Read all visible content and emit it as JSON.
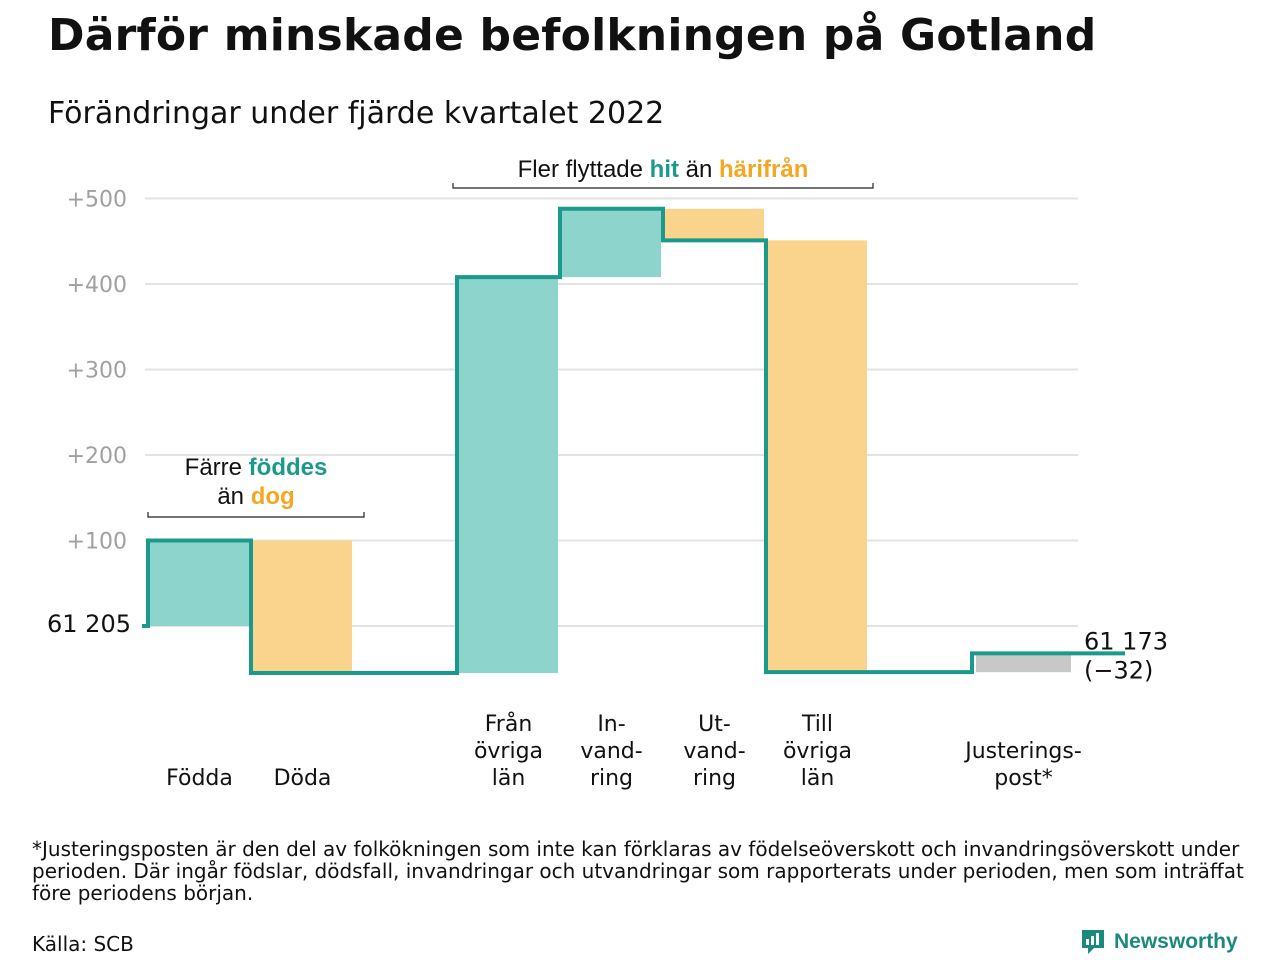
{
  "title": "Därför minskade befolkningen på Gotland",
  "subtitle": "Förändringar under fjärde kvartalet 2022",
  "chart_data": {
    "type": "waterfall",
    "start_label": "61 205",
    "start_value": 61205,
    "end_label_value": "61 173",
    "end_label_change": "(−32)",
    "end_value": 61173,
    "ylim": [
      -55,
      525
    ],
    "y_ticks": [
      {
        "value": 100,
        "label": "+100"
      },
      {
        "value": 200,
        "label": "+200"
      },
      {
        "value": 300,
        "label": "+300"
      },
      {
        "value": 400,
        "label": "+400"
      },
      {
        "value": 500,
        "label": "+500"
      }
    ],
    "steps": [
      {
        "key": "fodda",
        "lines": [
          "Födda"
        ],
        "change": 100,
        "kind": "in"
      },
      {
        "key": "doda",
        "lines": [
          "Döda"
        ],
        "change": -155,
        "kind": "out"
      },
      {
        "key": "gap1",
        "lines": [],
        "change": 0,
        "kind": "none"
      },
      {
        "key": "fran-ovriga-lan",
        "lines": [
          "Från",
          "övriga",
          "län"
        ],
        "change": 463,
        "kind": "in"
      },
      {
        "key": "invandring",
        "lines": [
          "In-",
          "vand-",
          "ring"
        ],
        "change": 80,
        "kind": "in"
      },
      {
        "key": "utvandring",
        "lines": [
          "Ut-",
          "vand-",
          "ring"
        ],
        "change": -37,
        "kind": "out"
      },
      {
        "key": "till-ovriga-lan",
        "lines": [
          "Till",
          "övriga",
          "län"
        ],
        "change": -505,
        "kind": "out"
      },
      {
        "key": "gap2",
        "lines": [],
        "change": 0,
        "kind": "none"
      },
      {
        "key": "justeringspost",
        "lines": [
          "Justerings-",
          "post*"
        ],
        "change": 22,
        "kind": "adjust"
      }
    ],
    "annotations": [
      {
        "key": "births",
        "parts": [
          {
            "line": 0,
            "text": "Färre ",
            "color": "#111111"
          },
          {
            "line": 0,
            "text": "föddes",
            "color": "#1b9a8c"
          },
          {
            "line": 1,
            "text": "än ",
            "color": "#111111"
          },
          {
            "line": 1,
            "text": "dog",
            "color": "#f5a623"
          }
        ]
      },
      {
        "key": "moves",
        "parts": [
          {
            "line": 0,
            "text": "Fler flyttade ",
            "color": "#111111"
          },
          {
            "line": 0,
            "text": "hit",
            "color": "#1b9a8c"
          },
          {
            "line": 0,
            "text": " än ",
            "color": "#111111"
          },
          {
            "line": 0,
            "text": "härifrån",
            "color": "#f5a623"
          }
        ]
      }
    ],
    "colors": {
      "in_fill": "#8dd5cc",
      "out_fill": "#fad48d",
      "adjust_fill": "#c8c8c8",
      "line": "#1b9a8c",
      "grid": "#e3e3e3",
      "tick": "#a0a0a0"
    }
  },
  "footnote": "*Justeringsposten är den del av folkökningen som inte kan förklaras av födelseöverskott och invandringsöverskott under perioden. Där ingår födslar, dödsfall, invandringar och utvandringar som rapporterats under perioden, men som inträffat före periodens början.",
  "source": "Källa: SCB",
  "brand": "Newsworthy"
}
